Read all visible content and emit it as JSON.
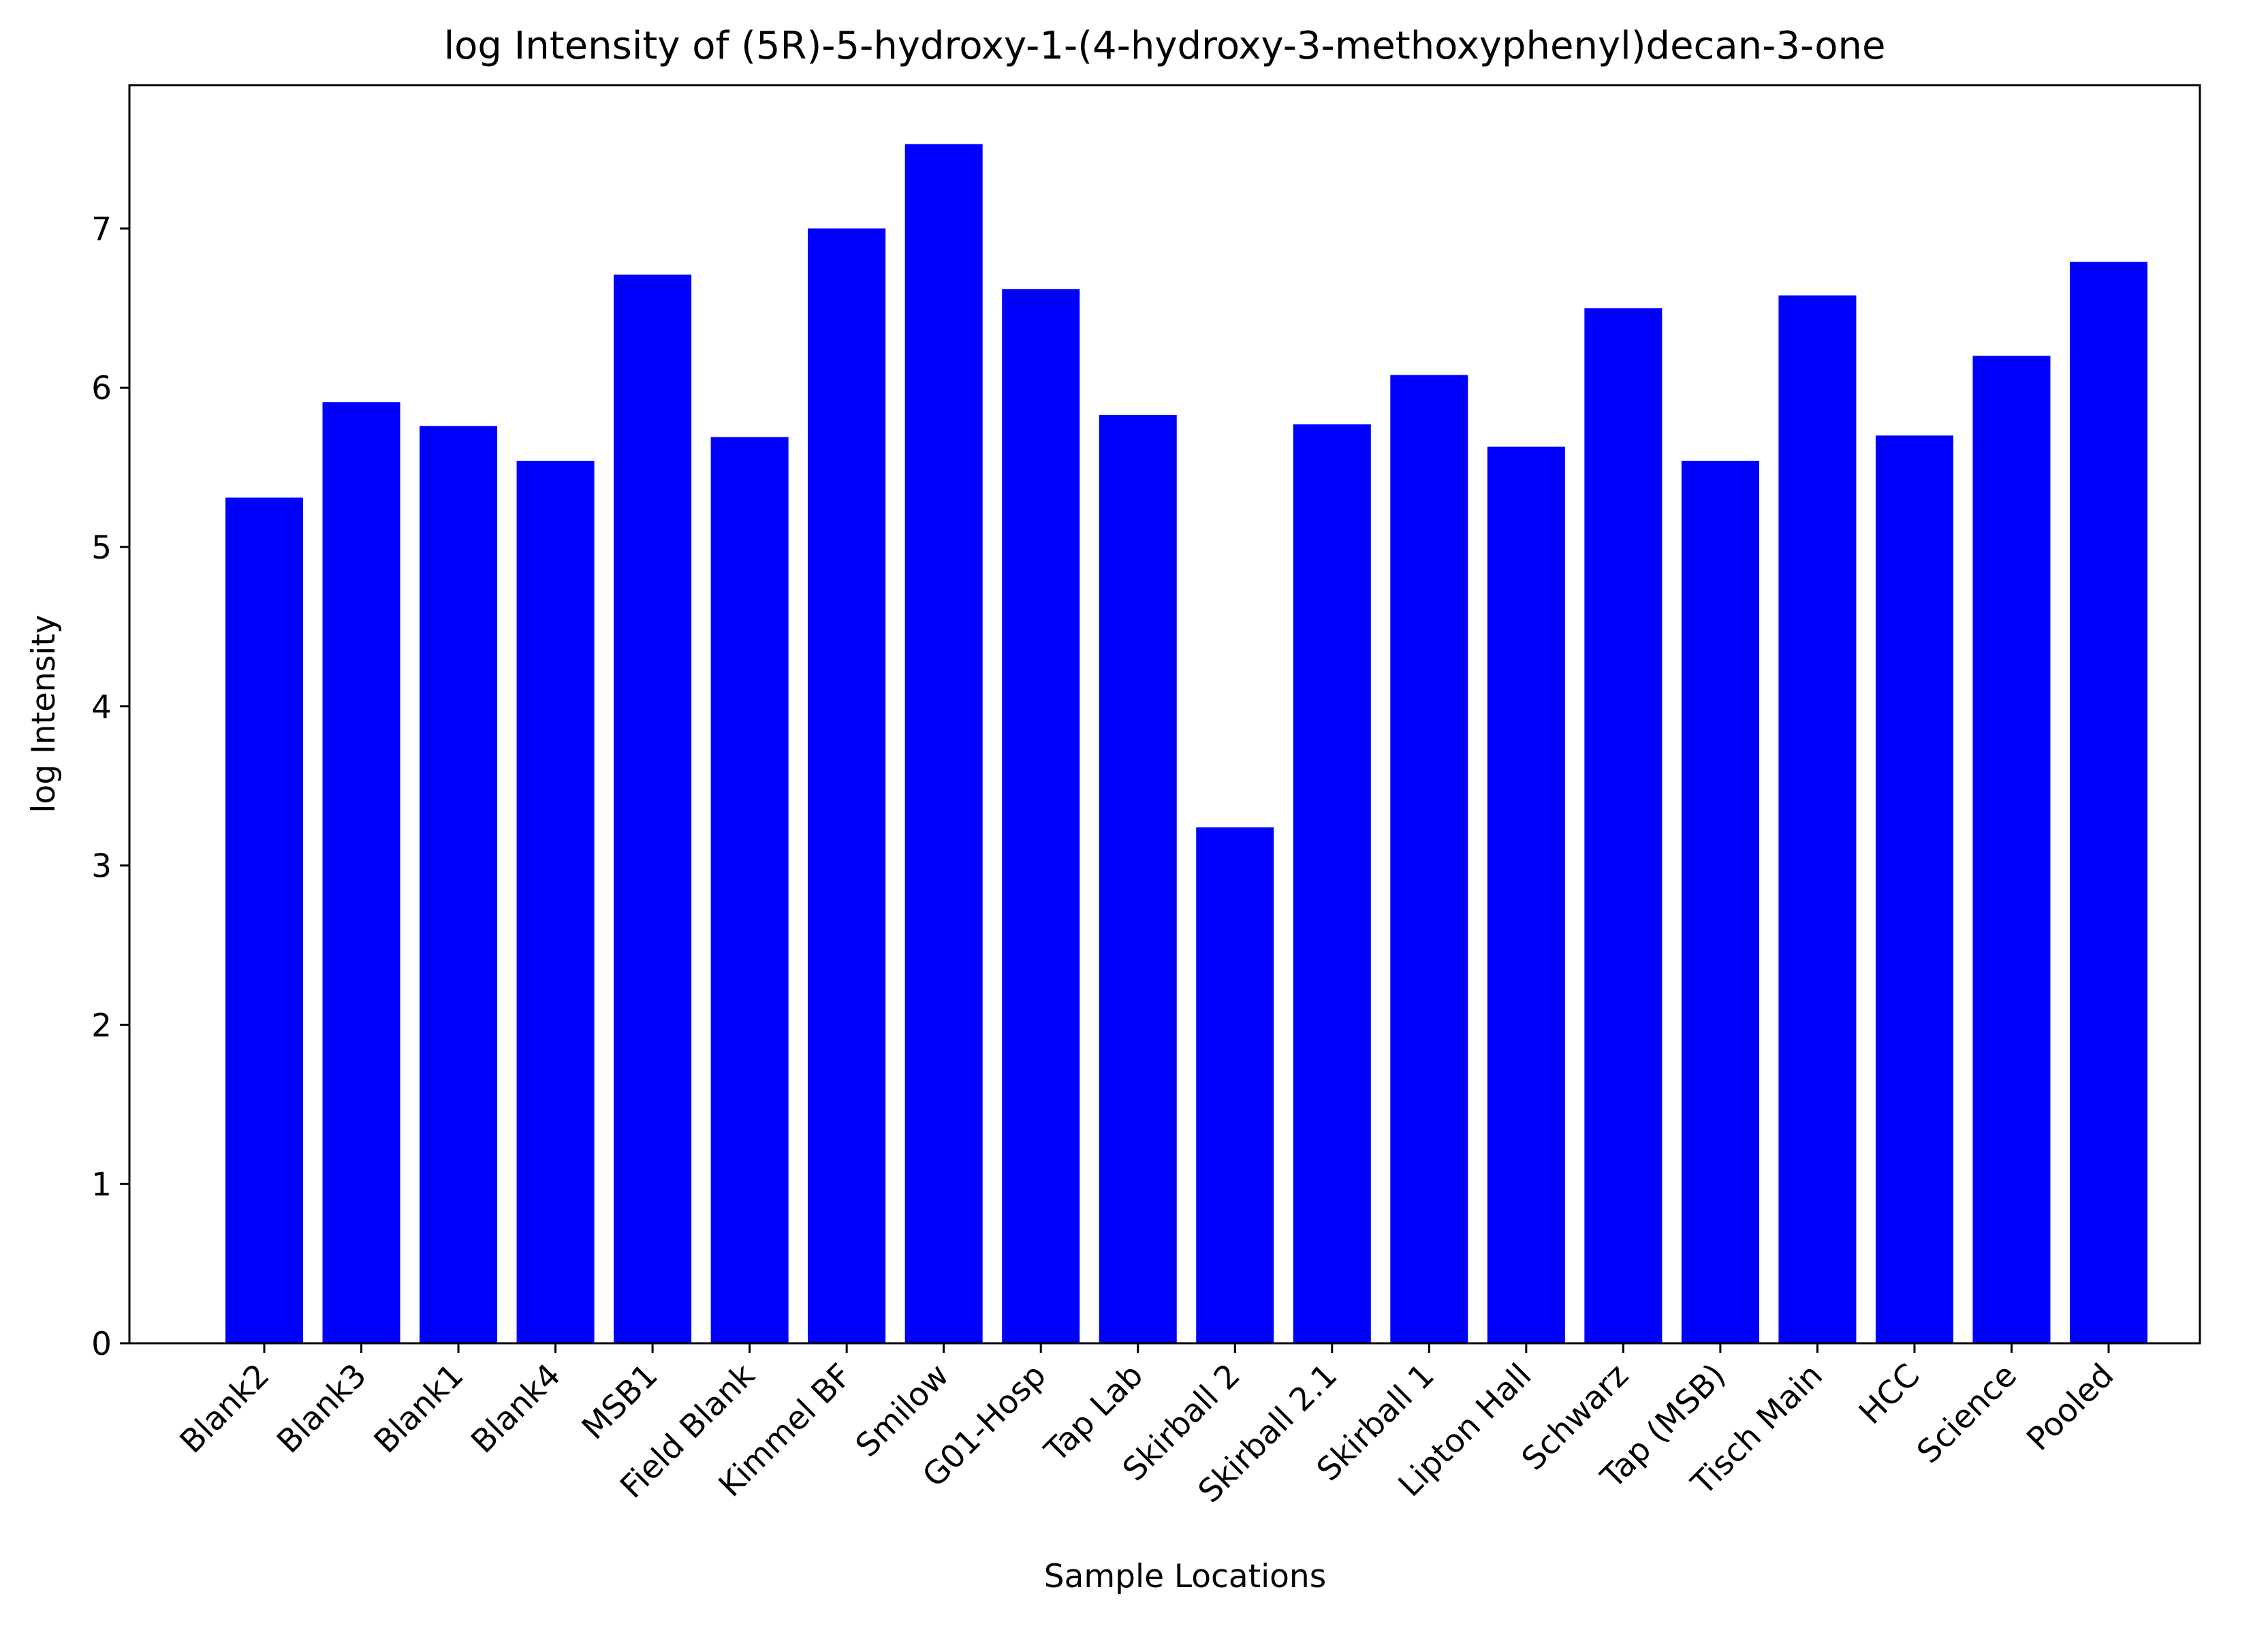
{
  "chart_data": {
    "type": "bar",
    "title": "log Intensity of (5R)-5-hydroxy-1-(4-hydroxy-3-methoxyphenyl)decan-3-one",
    "xlabel": "Sample Locations",
    "ylabel": "log Intensity",
    "ylim": [
      0,
      7.9
    ],
    "yticks": [
      "0",
      "1",
      "2",
      "3",
      "4",
      "5",
      "6",
      "7"
    ],
    "grid": false,
    "bar_color": "#0000ff",
    "categories": [
      "Blank2",
      "Blank3",
      "Blank1",
      "Blank4",
      "MSB1",
      "Field Blank",
      "Kimmel BF",
      "Smilow",
      "G01-Hosp",
      "Tap Lab",
      "Skirball 2",
      "Skirball 2.1",
      "Skirball 1",
      "Lipton Hall",
      "Schwarz",
      "Tap (MSB)",
      "Tisch Main",
      "HCC",
      "Science",
      "Pooled"
    ],
    "values": [
      5.31,
      5.91,
      5.76,
      5.54,
      6.71,
      5.69,
      7.0,
      7.53,
      6.62,
      5.83,
      3.24,
      5.77,
      6.08,
      5.63,
      6.5,
      5.54,
      6.58,
      5.7,
      6.2,
      6.79
    ]
  }
}
